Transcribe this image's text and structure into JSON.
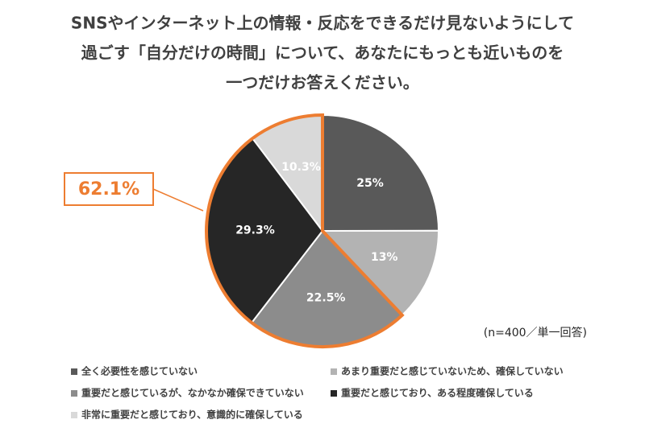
{
  "chart_data": {
    "type": "pie",
    "title": [
      "SNSやインターネット上の情報・反応をできるだけ見ないようにして",
      "過ごす「自分だけの時間」について、あなたにもっとも近いものを",
      "一つだけお答えください。"
    ],
    "categories": [
      "全く必要性を感じていない",
      "あまり重要だと感じていないため、確保していない",
      "重要だと感じているが、なかなか確保できていない",
      "重要だと感じており、ある程度確保している",
      "非常に重要だと感じており、意識的に確保している"
    ],
    "values": [
      25,
      13,
      22.5,
      29.3,
      10.3
    ],
    "value_labels": [
      "25%",
      "13%",
      "22.5%",
      "29.3%",
      "10.3%"
    ],
    "colors": [
      "#595959",
      "#b3b3b3",
      "#8c8c8c",
      "#262626",
      "#d9d9d9"
    ],
    "highlight_label": "62.1%",
    "highlight_color": "#ed7d31",
    "note": "(n=400／単一回答)"
  }
}
